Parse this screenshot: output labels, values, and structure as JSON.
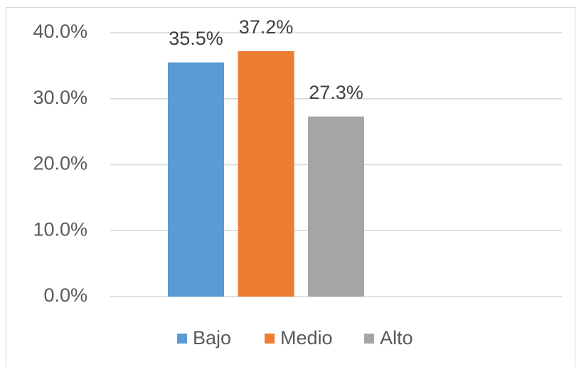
{
  "chart_data": {
    "type": "bar",
    "categories": [
      null
    ],
    "series": [
      {
        "name": "Bajo",
        "color": "#5b9bd5",
        "values": [
          35.5
        ],
        "value_labels": [
          "35.5%"
        ]
      },
      {
        "name": "Medio",
        "color": "#ed7d31",
        "values": [
          37.2
        ],
        "value_labels": [
          "37.2%"
        ]
      },
      {
        "name": "Alto",
        "color": "#a5a5a5",
        "values": [
          27.3
        ],
        "value_labels": [
          "27.3%"
        ]
      }
    ],
    "ylim": [
      0,
      40
    ],
    "yticks": [
      {
        "value": 0,
        "label": "0.0%"
      },
      {
        "value": 10,
        "label": "10.0%"
      },
      {
        "value": 20,
        "label": "20.0%"
      },
      {
        "value": 30,
        "label": "30.0%"
      },
      {
        "value": 40,
        "label": "40.0%"
      }
    ],
    "grid": true,
    "legend": "bottom"
  }
}
